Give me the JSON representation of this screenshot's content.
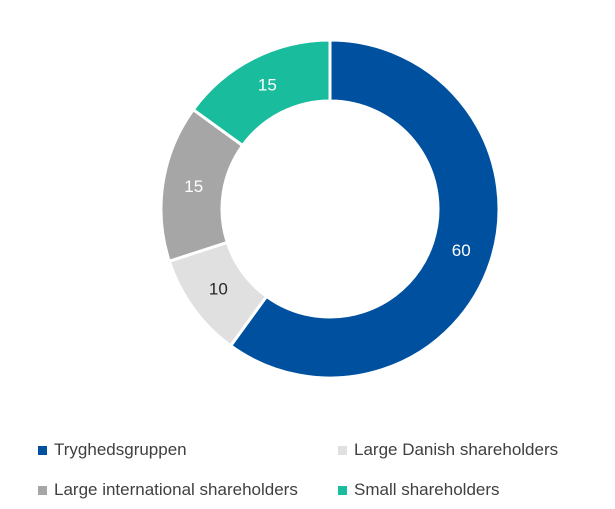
{
  "chart_data": {
    "type": "pie",
    "donut": true,
    "legend_position": "bottom",
    "slices": [
      {
        "name": "Tryghedsgruppen",
        "value": 60,
        "color": "#0050A0",
        "label_color": "#ffffff"
      },
      {
        "name": "Large Danish shareholders",
        "value": 10,
        "color": "#E0E0E0",
        "label_color": "#262626"
      },
      {
        "name": "Large international shareholders",
        "value": 15,
        "color": "#A6A6A6",
        "label_color": "#ffffff"
      },
      {
        "name": "Small shareholders",
        "value": 15,
        "color": "#19BC9C",
        "label_color": "#ffffff"
      }
    ]
  }
}
